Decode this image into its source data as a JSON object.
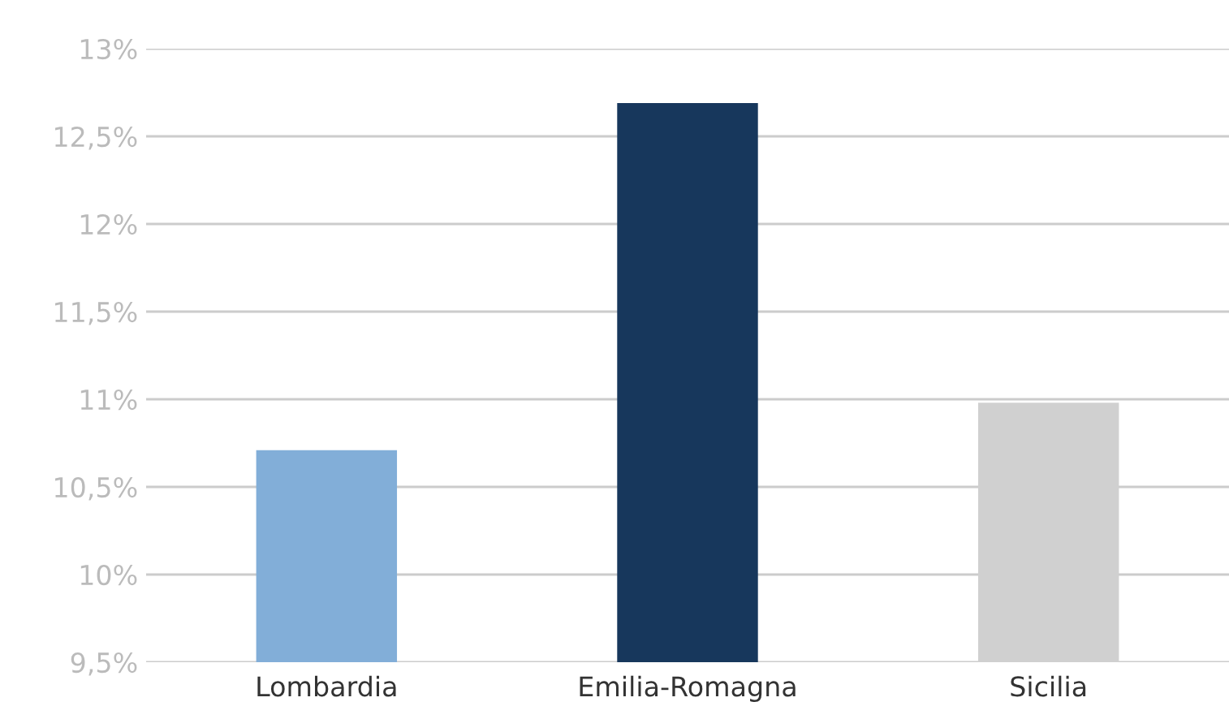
{
  "chart_data": {
    "type": "bar",
    "categories": [
      "Lombardia",
      "Emilia-Romagna",
      "Sicilia"
    ],
    "values": [
      10.71,
      12.69,
      10.98
    ],
    "colors": [
      "#82aed8",
      "#17375c",
      "#d0d0d0"
    ],
    "ylim": [
      9.5,
      13
    ],
    "yticks": [
      {
        "value": 9.5,
        "label": "9,5%"
      },
      {
        "value": 10,
        "label": "10%"
      },
      {
        "value": 10.5,
        "label": "10,5%"
      },
      {
        "value": 11,
        "label": "11%"
      },
      {
        "value": 11.5,
        "label": "11,5%"
      },
      {
        "value": 12,
        "label": "12%"
      },
      {
        "value": 12.5,
        "label": "12,5%"
      },
      {
        "value": 13,
        "label": "13%"
      }
    ],
    "grid": "y"
  }
}
